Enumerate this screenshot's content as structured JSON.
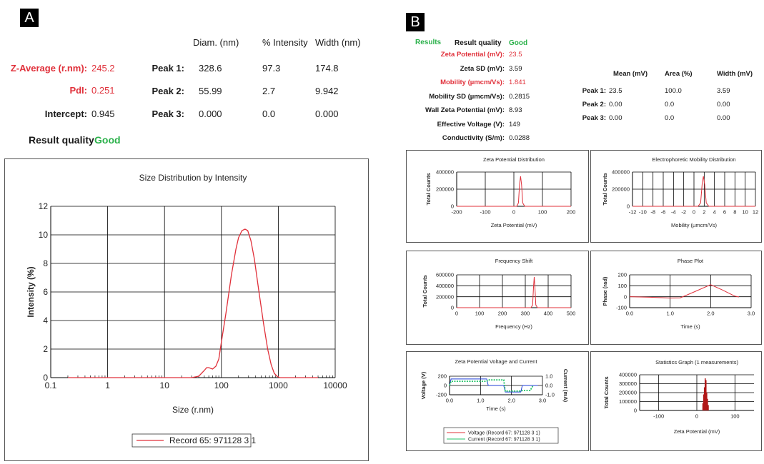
{
  "panelA": {
    "letter": "A",
    "headers": [
      "Diam. (nm)",
      "% Intensity",
      "Width (nm)"
    ],
    "left": [
      {
        "label": "Z-Average (r.nm):",
        "value": "245.2",
        "color": "#e0303a"
      },
      {
        "label": "PdI:",
        "value": "0.251",
        "color": "#e0303a"
      },
      {
        "label": "Intercept:",
        "value": "0.945",
        "color": "#1a1a1a"
      }
    ],
    "peaks": [
      {
        "label": "Peak 1:",
        "diam": "328.6",
        "intensity": "97.3",
        "width": "174.8"
      },
      {
        "label": "Peak 2:",
        "diam": "55.99",
        "intensity": "2.7",
        "width": "9.942"
      },
      {
        "label": "Peak 3:",
        "diam": "0.000",
        "intensity": "0.0",
        "width": "0.000"
      }
    ],
    "quality_label": "Result quality",
    "quality_value": "Good"
  },
  "panelB": {
    "letter": "B",
    "results_label": "Results",
    "quality_label": "Result quality",
    "quality_value": "Good",
    "rows": [
      {
        "label": "Zeta Potential (mV):",
        "value": "23.5",
        "red": true
      },
      {
        "label": "Zeta SD (mV):",
        "value": "3.59",
        "red": false
      },
      {
        "label": "Mobility (µmcm/Vs):",
        "value": "1.841",
        "red": true
      },
      {
        "label": "Mobility SD (µmcm/Vs):",
        "value": "0.2815",
        "red": false
      },
      {
        "label": "Wall Zeta Potential (mV):",
        "value": "8.93",
        "red": false
      },
      {
        "label": "Effective Voltage (V):",
        "value": "149",
        "red": false
      },
      {
        "label": "Conductivity (S/m):",
        "value": "0.0288",
        "red": false
      }
    ],
    "peak_headers": [
      "Mean (mV)",
      "Area (%)",
      "Width (mV)"
    ],
    "peaks": [
      {
        "label": "Peak 1:",
        "mean": "23.5",
        "area": "100.0",
        "width": "3.59"
      },
      {
        "label": "Peak 2:",
        "mean": "0.00",
        "area": "0.0",
        "width": "0.00"
      },
      {
        "label": "Peak 3:",
        "mean": "0.00",
        "area": "0.0",
        "width": "0.00"
      }
    ]
  },
  "colors": {
    "red": "#e0303a",
    "green": "#2bb14b",
    "blue": "#1f3fd6",
    "darkred": "#b01818"
  },
  "chart_data": [
    {
      "id": "size",
      "type": "line",
      "title": "Size Distribution by Intensity",
      "xlabel": "Size (r.nm)",
      "ylabel": "Intensity (%)",
      "xscale": "log",
      "xlim": [
        0.1,
        10000
      ],
      "ylim": [
        0,
        12
      ],
      "xticks": [
        "0.1",
        "1",
        "10",
        "100",
        "1000",
        "10000"
      ],
      "yticks": [
        "0",
        "2",
        "4",
        "6",
        "8",
        "10",
        "12"
      ],
      "legend": "Record 65: 971128 3 1",
      "series": [
        {
          "name": "Record 65: 971128 3 1",
          "x": [
            0.2,
            1,
            10,
            30,
            40,
            50,
            55,
            60,
            70,
            80,
            90,
            100,
            120,
            150,
            180,
            200,
            230,
            260,
            290,
            330,
            380,
            450,
            550,
            650,
            750,
            850,
            950,
            1050,
            1500,
            5000
          ],
          "y": [
            0,
            0,
            0,
            0,
            0.1,
            0.5,
            0.7,
            0.7,
            0.6,
            0.8,
            1.3,
            2.5,
            4.5,
            7.2,
            9.0,
            9.8,
            10.3,
            10.4,
            10.3,
            9.6,
            8.3,
            6.2,
            3.8,
            2.0,
            0.9,
            0.3,
            0.1,
            0,
            0,
            0
          ]
        }
      ]
    },
    {
      "id": "zeta",
      "type": "line",
      "title": "Zeta Potential Distribution",
      "xlabel": "Zeta Potential (mV)",
      "ylabel": "Total Counts",
      "xlim": [
        -200,
        200
      ],
      "ylim": [
        0,
        400000
      ],
      "xticks": [
        "-200",
        "-100",
        "0",
        "100",
        "200"
      ],
      "yticks": [
        "0",
        "200000",
        "400000"
      ],
      "series": [
        {
          "x": [
            -200,
            10,
            16,
            20,
            23.5,
            27,
            31,
            38,
            200
          ],
          "y": [
            0,
            0,
            40000,
            260000,
            350000,
            250000,
            40000,
            0,
            0
          ]
        }
      ]
    },
    {
      "id": "mobility",
      "type": "line",
      "title": "Electrophoretic Mobility Distribution",
      "xlabel": "Mobility (µmcm/Vs)",
      "ylabel": "Total Counts",
      "xlim": [
        -12,
        12
      ],
      "ylim": [
        0,
        400000
      ],
      "xticks": [
        "-12",
        "-10",
        "-8",
        "-6",
        "-4",
        "-2",
        "0",
        "2",
        "4",
        "6",
        "8",
        "10",
        "12"
      ],
      "yticks": [
        "0",
        "200000",
        "400000"
      ],
      "series": [
        {
          "x": [
            -12,
            0.8,
            1.3,
            1.6,
            1.84,
            2.1,
            2.4,
            2.9,
            12
          ],
          "y": [
            0,
            0,
            40000,
            260000,
            350000,
            250000,
            40000,
            0,
            0
          ]
        }
      ]
    },
    {
      "id": "freq",
      "type": "line",
      "title": "Frequency Shift",
      "xlabel": "Frequency (Hz)",
      "ylabel": "Total Counts",
      "xlim": [
        0,
        500
      ],
      "ylim": [
        0,
        600000
      ],
      "xticks": [
        "0",
        "100",
        "200",
        "300",
        "400",
        "500"
      ],
      "yticks": [
        "0",
        "200000",
        "400000",
        "600000"
      ],
      "series": [
        {
          "x": [
            0,
            325,
            332,
            336,
            339,
            342,
            346,
            353,
            500
          ],
          "y": [
            0,
            0,
            50000,
            380000,
            560000,
            380000,
            50000,
            0,
            0
          ]
        }
      ]
    },
    {
      "id": "phase",
      "type": "line",
      "title": "Phase Plot",
      "xlabel": "Time (s)",
      "ylabel": "Phase (rad)",
      "xlim": [
        0,
        3
      ],
      "ylim": [
        -100,
        200
      ],
      "xticks": [
        "0.0",
        "1.0",
        "2.0",
        "3.0"
      ],
      "yticks": [
        "-100",
        "0",
        "100",
        "200"
      ],
      "series": [
        {
          "x": [
            0,
            0.5,
            1.0,
            1.25,
            1.6,
            2.0,
            2.3,
            2.6,
            2.7
          ],
          "y": [
            0,
            -5,
            -12,
            -10,
            45,
            110,
            60,
            5,
            -2
          ]
        }
      ]
    },
    {
      "id": "voltage",
      "type": "line",
      "title": "Zeta Potential Voltage and Current",
      "xlabel": "Time (s)",
      "ylabel": "Voltage (V)",
      "y2label": "Current (mA)",
      "xlim": [
        0,
        3
      ],
      "ylim": [
        -200,
        200
      ],
      "y2lim": [
        -1,
        1
      ],
      "xticks": [
        "0.0",
        "1.0",
        "2.0",
        "3.0"
      ],
      "yticks": [
        "-200",
        "0",
        "200"
      ],
      "y2ticks": [
        "-1.0",
        "0.0",
        "1.0"
      ],
      "legend": [
        "Voltage (Record 67: 971128 3 1)",
        "Current (Record 67: 971128 3 1)"
      ],
      "series": [
        {
          "name": "Voltage (Record 67: 971128 3 1)",
          "x": [
            0,
            0.05,
            1.2,
            1.25,
            1.75,
            1.8,
            2.3,
            2.35,
            2.8,
            2.85
          ],
          "y": [
            0,
            140,
            140,
            0,
            0,
            -140,
            -140,
            0,
            0,
            0
          ]
        },
        {
          "name": "Current (Record 67: 971128 3 1)",
          "x": [
            0,
            0.05,
            1.2,
            1.25,
            1.75,
            1.8,
            2.3,
            2.35,
            2.6,
            2.7
          ],
          "y": [
            0,
            0.45,
            0.45,
            0.6,
            0.6,
            -0.6,
            -0.6,
            -0.55,
            -0.55,
            0
          ]
        }
      ]
    },
    {
      "id": "stats",
      "type": "bar",
      "title": "Statistics Graph (1 measurements)",
      "xlabel": "Zeta Potential (mV)",
      "ylabel": "Total Counts",
      "xlim": [
        -150,
        150
      ],
      "ylim": [
        0,
        400000
      ],
      "xticks": [
        "-100",
        "0",
        "100"
      ],
      "yticks": [
        "0",
        "100000",
        "200000",
        "300000",
        "400000"
      ],
      "x": [
        16,
        18,
        20,
        22,
        24,
        26,
        28,
        30
      ],
      "values": [
        80000,
        180000,
        260000,
        360000,
        340000,
        200000,
        130000,
        60000
      ]
    }
  ]
}
